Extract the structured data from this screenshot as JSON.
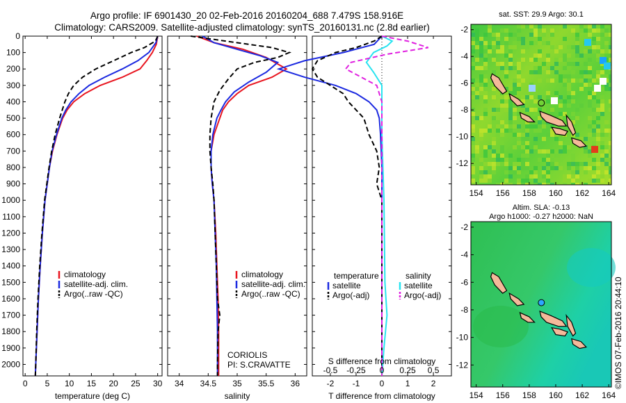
{
  "header": {
    "line1": "Argo profile: IF 6901430_20 02-Feb-2016 20160204_688 7.479S 158.916E",
    "line2": "Climatology: CARS2009. Satellite-adjusted climatology: synTS_20160131.nc (2.8d earlier)"
  },
  "side_label": "©IMOS 07-Feb-2016 20:44:10",
  "colors": {
    "climatology": "#e8141e",
    "satellite": "#1b29e0",
    "argo": "#000000",
    "sal_sat": "#27e3f0",
    "sal_argo": "#e020e0"
  },
  "chart_data": [
    {
      "type": "line",
      "name": "temperature-panel",
      "xlabel": "temperature (deg C)",
      "xlim": [
        -0.5,
        31
      ],
      "ylim": [
        2070,
        0
      ],
      "xticks": [
        0,
        5,
        10,
        15,
        20,
        25,
        30
      ],
      "yticks": [
        0,
        100,
        200,
        300,
        400,
        500,
        600,
        700,
        800,
        900,
        1000,
        1100,
        1200,
        1300,
        1400,
        1500,
        1600,
        1700,
        1800,
        1900,
        2000
      ],
      "legend": [
        "climatology",
        "satellite-adj. clim.",
        "Argo(..raw -QC)"
      ],
      "series": [
        {
          "name": "climatology",
          "style": "solid",
          "color": "#e8141e",
          "points": [
            [
              30,
              0
            ],
            [
              29.7,
              50
            ],
            [
              28.8,
              100
            ],
            [
              27.5,
              150
            ],
            [
              26,
              200
            ],
            [
              22,
              250
            ],
            [
              17,
              300
            ],
            [
              13.5,
              350
            ],
            [
              11,
              400
            ],
            [
              9.5,
              450
            ],
            [
              8.5,
              500
            ],
            [
              7.2,
              600
            ],
            [
              6.2,
              700
            ],
            [
              5.5,
              800
            ],
            [
              5,
              900
            ],
            [
              4.5,
              1000
            ],
            [
              3.9,
              1200
            ],
            [
              3.4,
              1400
            ],
            [
              3,
              1600
            ],
            [
              2.7,
              1800
            ],
            [
              2.4,
              2000
            ],
            [
              2.3,
              2070
            ]
          ]
        },
        {
          "name": "satellite-adj. clim.",
          "style": "solid",
          "color": "#1b29e0",
          "points": [
            [
              30,
              0
            ],
            [
              29.6,
              40
            ],
            [
              28,
              100
            ],
            [
              25.5,
              150
            ],
            [
              22,
              200
            ],
            [
              18,
              250
            ],
            [
              14.5,
              300
            ],
            [
              12.2,
              350
            ],
            [
              10.4,
              400
            ],
            [
              9.2,
              450
            ],
            [
              8.3,
              500
            ],
            [
              7.1,
              600
            ],
            [
              6.1,
              700
            ],
            [
              5.5,
              800
            ],
            [
              5,
              900
            ],
            [
              4.5,
              1000
            ],
            [
              3.9,
              1200
            ],
            [
              3.4,
              1400
            ],
            [
              3,
              1600
            ],
            [
              2.7,
              1800
            ],
            [
              2.4,
              2000
            ],
            [
              2.3,
              2070
            ]
          ]
        },
        {
          "name": "Argo(..raw -QC)",
          "style": "dashed",
          "color": "#000000",
          "points": [
            [
              30,
              0
            ],
            [
              29.5,
              30
            ],
            [
              27,
              70
            ],
            [
              24,
              100
            ],
            [
              20,
              150
            ],
            [
              16,
              200
            ],
            [
              13,
              250
            ],
            [
              11,
              300
            ],
            [
              9.8,
              350
            ],
            [
              9,
              400
            ],
            [
              8.4,
              450
            ],
            [
              7.8,
              500
            ],
            [
              6.8,
              600
            ],
            [
              6,
              700
            ],
            [
              5.4,
              800
            ],
            [
              4.9,
              900
            ],
            [
              4.4,
              1000
            ],
            [
              3.8,
              1200
            ],
            [
              3.3,
              1400
            ],
            [
              2.9,
              1600
            ],
            [
              2.6,
              1800
            ],
            [
              2.4,
              2000
            ],
            [
              2.3,
              2070
            ]
          ]
        }
      ]
    },
    {
      "type": "line",
      "name": "salinity-panel",
      "xlabel": "salinity",
      "xlim": [
        33.8,
        36.2
      ],
      "ylim": [
        2070,
        0
      ],
      "xticks": [
        34,
        34.5,
        35,
        35.5,
        36
      ],
      "legend": [
        "climatology",
        "satellite-adj. clim.",
        "Argo(..raw -QC)"
      ],
      "annotation": [
        "CORIOLIS",
        "PI: S.CRAVATTE"
      ],
      "series": [
        {
          "name": "climatology",
          "style": "solid",
          "color": "#e8141e",
          "points": [
            [
              34.3,
              0
            ],
            [
              34.6,
              40
            ],
            [
              35.1,
              80
            ],
            [
              35.5,
              130
            ],
            [
              35.85,
              200
            ],
            [
              35.6,
              250
            ],
            [
              35.2,
              300
            ],
            [
              35,
              350
            ],
            [
              34.85,
              400
            ],
            [
              34.75,
              450
            ],
            [
              34.7,
              500
            ],
            [
              34.6,
              600
            ],
            [
              34.55,
              700
            ],
            [
              34.55,
              800
            ],
            [
              34.57,
              900
            ],
            [
              34.6,
              1000
            ],
            [
              34.63,
              1200
            ],
            [
              34.65,
              1400
            ],
            [
              34.67,
              1600
            ],
            [
              34.68,
              1800
            ],
            [
              34.68,
              2000
            ],
            [
              34.68,
              2070
            ]
          ]
        },
        {
          "name": "satellite-adj. clim.",
          "style": "solid",
          "color": "#1b29e0",
          "points": [
            [
              34.4,
              0
            ],
            [
              34.6,
              40
            ],
            [
              35,
              80
            ],
            [
              35.4,
              120
            ],
            [
              35.7,
              160
            ],
            [
              35.5,
              220
            ],
            [
              35.2,
              280
            ],
            [
              34.95,
              340
            ],
            [
              34.8,
              400
            ],
            [
              34.72,
              450
            ],
            [
              34.65,
              500
            ],
            [
              34.58,
              600
            ],
            [
              34.55,
              700
            ],
            [
              34.55,
              800
            ],
            [
              34.57,
              900
            ],
            [
              34.6,
              1000
            ],
            [
              34.62,
              1200
            ],
            [
              34.64,
              1400
            ],
            [
              34.65,
              1600
            ],
            [
              34.66,
              1800
            ],
            [
              34.66,
              2000
            ],
            [
              34.66,
              2070
            ]
          ]
        },
        {
          "name": "Argo(..raw -QC)",
          "style": "dashed",
          "color": "#000000",
          "points": [
            [
              34.2,
              0
            ],
            [
              34.8,
              30
            ],
            [
              35.6,
              70
            ],
            [
              35.9,
              100
            ],
            [
              35.7,
              130
            ],
            [
              35.3,
              160
            ],
            [
              35,
              200
            ],
            [
              34.85,
              260
            ],
            [
              34.7,
              330
            ],
            [
              34.6,
              400
            ],
            [
              34.55,
              500
            ],
            [
              34.53,
              600
            ],
            [
              34.53,
              700
            ],
            [
              34.55,
              800
            ],
            [
              34.58,
              900
            ],
            [
              34.6,
              1000
            ],
            [
              34.62,
              1200
            ],
            [
              34.64,
              1400
            ],
            [
              34.66,
              1600
            ],
            [
              34.7,
              1700
            ],
            [
              34.67,
              1800
            ],
            [
              34.66,
              2000
            ],
            [
              34.66,
              2070
            ]
          ]
        }
      ]
    },
    {
      "type": "line",
      "name": "difference-panel",
      "xlabel": "T difference from climatology",
      "xlabel_top": "S difference from climatology",
      "xlim": [
        -2.7,
        2.7
      ],
      "ylim": [
        2070,
        0
      ],
      "xticks": [
        -2,
        -1,
        0,
        1,
        2
      ],
      "xticks_top_values": [
        -0.5,
        -0.25,
        0,
        0.25,
        0.5
      ],
      "xticks_top_labels": [
        "-0.5",
        "-0.25",
        "0",
        "0.25",
        "0.5"
      ],
      "legend_temperature": [
        "temperature",
        "satellite",
        "Argo(-adj)"
      ],
      "legend_salinity": [
        "salinity",
        "satellite",
        "Argo(-adj)"
      ],
      "series": [
        {
          "name": "satellite",
          "group": "temperature",
          "style": "solid",
          "color": "#1b29e0",
          "points": [
            [
              0,
              0
            ],
            [
              -0.3,
              50
            ],
            [
              -1.5,
              100
            ],
            [
              -3,
              150
            ],
            [
              -4,
              200
            ],
            [
              -3,
              250
            ],
            [
              -1.8,
              300
            ],
            [
              -1,
              350
            ],
            [
              -0.5,
              400
            ],
            [
              -0.2,
              450
            ],
            [
              -0.1,
              500
            ],
            [
              -0.05,
              600
            ],
            [
              0,
              800
            ],
            [
              0,
              1000
            ],
            [
              0,
              1500
            ],
            [
              0,
              2070
            ]
          ]
        },
        {
          "name": "Argo(-adj)",
          "group": "temperature",
          "style": "dashed",
          "color": "#000000",
          "points": [
            [
              0,
              0
            ],
            [
              -0.3,
              30
            ],
            [
              -1,
              70
            ],
            [
              -1.8,
              100
            ],
            [
              -2.5,
              150
            ],
            [
              -2.7,
              200
            ],
            [
              -2.5,
              250
            ],
            [
              -2,
              300
            ],
            [
              -1.5,
              350
            ],
            [
              -1.3,
              400
            ],
            [
              -1,
              450
            ],
            [
              -0.7,
              500
            ],
            [
              -0.5,
              600
            ],
            [
              -0.2,
              700
            ],
            [
              -0.1,
              800
            ],
            [
              -0.2,
              900
            ],
            [
              0,
              1000
            ],
            [
              0,
              1200
            ],
            [
              0,
              1500
            ],
            [
              0,
              2070
            ]
          ]
        },
        {
          "name": "satellite",
          "group": "salinity",
          "style": "solid",
          "color": "#27e3f0",
          "points": [
            [
              0,
              0
            ],
            [
              0.1,
              30
            ],
            [
              0.05,
              60
            ],
            [
              -0.08,
              100
            ],
            [
              -0.15,
              160
            ],
            [
              -0.08,
              220
            ],
            [
              0,
              300
            ],
            [
              0,
              400
            ],
            [
              0,
              600
            ],
            [
              0.02,
              1000
            ],
            [
              0.03,
              1500
            ],
            [
              0.05,
              1700
            ],
            [
              0.02,
              1900
            ],
            [
              0,
              2070
            ]
          ]
        },
        {
          "name": "Argo(-adj)",
          "group": "salinity",
          "style": "dashed",
          "color": "#e020e0",
          "points": [
            [
              0,
              0
            ],
            [
              0.25,
              30
            ],
            [
              0.45,
              70
            ],
            [
              0.05,
              110
            ],
            [
              -0.3,
              160
            ],
            [
              -0.35,
              200
            ],
            [
              -0.2,
              250
            ],
            [
              -0.05,
              300
            ],
            [
              0,
              400
            ],
            [
              0,
              600
            ],
            [
              0,
              800
            ],
            [
              0,
              1000
            ],
            [
              0,
              1500
            ],
            [
              0,
              1700
            ],
            [
              0,
              2070
            ]
          ]
        }
      ]
    },
    {
      "type": "heatmap",
      "name": "sst-map",
      "title": "sat. SST: 29.9 Argo: 30.1",
      "xlim": [
        153.6,
        164.2
      ],
      "ylim": [
        -13.6,
        -1.6
      ],
      "xticks": [
        154,
        156,
        158,
        160,
        162,
        164
      ],
      "yticks": [
        -2,
        -4,
        -6,
        -8,
        -10,
        -12
      ],
      "argo_position": {
        "lon": 158.916,
        "lat": -7.479
      }
    },
    {
      "type": "heatmap",
      "name": "sla-map",
      "title": "Altim. SLA: -0.13",
      "subtitle": "Argo h1000: -0.27 h2000: NaN",
      "xlim": [
        153.6,
        164.2
      ],
      "ylim": [
        -13.6,
        -1.6
      ],
      "xticks": [
        154,
        156,
        158,
        160,
        162,
        164
      ],
      "yticks": [
        -2,
        -4,
        -6,
        -8,
        -10,
        -12
      ],
      "argo_position": {
        "lon": 158.916,
        "lat": -7.479
      }
    }
  ]
}
